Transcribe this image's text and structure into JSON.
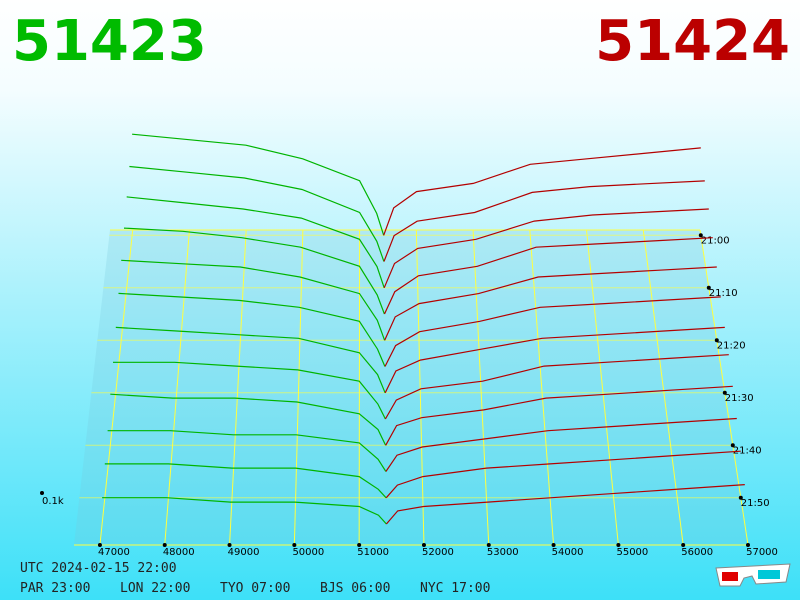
{
  "chart_data": {
    "type": "depth3d",
    "bid_price": 51423,
    "ask_price": 51424,
    "bid_color": "#00b400",
    "ask_color": "#b40000",
    "grid_color": "#ffff40",
    "xlim": [
      46600,
      57000
    ],
    "xticks": [
      47000,
      48000,
      49000,
      50000,
      51000,
      52000,
      53000,
      54000,
      55000,
      56000,
      57000
    ],
    "tlim": [
      -1,
      59
    ],
    "tticks": [
      {
        "value": 0,
        "label": "21:00"
      },
      {
        "value": 10,
        "label": "21:10"
      },
      {
        "value": 20,
        "label": "21:20"
      },
      {
        "value": 30,
        "label": "21:30"
      },
      {
        "value": 40,
        "label": "21:40"
      },
      {
        "value": 50,
        "label": "21:50"
      }
    ],
    "zticks": [
      {
        "value": 0.1,
        "label": "0.1k"
      }
    ],
    "bid_prices": [
      47000,
      48000,
      49000,
      50000,
      51000,
      51300,
      51423
    ],
    "ask_prices": [
      51424,
      51600,
      52000,
      53000,
      54000,
      55000,
      56000,
      57000
    ],
    "snapshots": [
      {
        "t": 0,
        "bids": [
          0.37,
          0.35,
          0.33,
          0.28,
          0.2,
          0.08,
          0
        ],
        "asks": [
          0,
          0.1,
          0.16,
          0.19,
          0.26,
          0.28,
          0.3,
          0.32
        ]
      },
      {
        "t": 5,
        "bids": [
          0.33,
          0.31,
          0.29,
          0.25,
          0.17,
          0.07,
          0
        ],
        "asks": [
          0,
          0.09,
          0.14,
          0.17,
          0.24,
          0.26,
          0.27,
          0.28
        ]
      },
      {
        "t": 10,
        "bids": [
          0.3,
          0.28,
          0.26,
          0.23,
          0.16,
          0.07,
          0
        ],
        "asks": [
          0,
          0.08,
          0.13,
          0.16,
          0.22,
          0.24,
          0.25,
          0.26
        ]
      },
      {
        "t": 15,
        "bids": [
          0.27,
          0.26,
          0.24,
          0.21,
          0.15,
          0.06,
          0
        ],
        "asks": [
          0,
          0.07,
          0.12,
          0.15,
          0.21,
          0.22,
          0.23,
          0.24
        ]
      },
      {
        "t": 20,
        "bids": [
          0.24,
          0.23,
          0.22,
          0.19,
          0.14,
          0.06,
          0
        ],
        "asks": [
          0,
          0.07,
          0.11,
          0.14,
          0.19,
          0.2,
          0.21,
          0.22
        ]
      },
      {
        "t": 25,
        "bids": [
          0.21,
          0.2,
          0.19,
          0.17,
          0.13,
          0.05,
          0
        ],
        "asks": [
          0,
          0.06,
          0.1,
          0.13,
          0.17,
          0.18,
          0.19,
          0.2
        ]
      },
      {
        "t": 30,
        "bids": [
          0.18,
          0.17,
          0.16,
          0.15,
          0.11,
          0.05,
          0
        ],
        "asks": [
          0,
          0.06,
          0.09,
          0.12,
          0.15,
          0.16,
          0.17,
          0.18
        ]
      },
      {
        "t": 35,
        "bids": [
          0.15,
          0.15,
          0.14,
          0.13,
          0.1,
          0.04,
          0
        ],
        "asks": [
          0,
          0.05,
          0.08,
          0.1,
          0.14,
          0.15,
          0.16,
          0.17
        ]
      },
      {
        "t": 40,
        "bids": [
          0.13,
          0.12,
          0.12,
          0.11,
          0.08,
          0.04,
          0
        ],
        "asks": [
          0,
          0.05,
          0.07,
          0.09,
          0.12,
          0.13,
          0.14,
          0.15
        ]
      },
      {
        "t": 45,
        "bids": [
          0.1,
          0.1,
          0.09,
          0.09,
          0.07,
          0.03,
          0
        ],
        "asks": [
          0,
          0.04,
          0.06,
          0.08,
          0.1,
          0.11,
          0.12,
          0.13
        ]
      },
      {
        "t": 50,
        "bids": [
          0.08,
          0.08,
          0.07,
          0.07,
          0.05,
          0.02,
          0
        ],
        "asks": [
          0,
          0.03,
          0.05,
          0.07,
          0.08,
          0.09,
          0.1,
          0.11
        ]
      },
      {
        "t": 55,
        "bids": [
          0.06,
          0.06,
          0.05,
          0.05,
          0.04,
          0.02,
          0
        ],
        "asks": [
          0,
          0.03,
          0.04,
          0.05,
          0.06,
          0.07,
          0.08,
          0.09
        ]
      }
    ]
  },
  "footer": {
    "utc": "UTC 2024-02-15 22:00",
    "cities": [
      "PAR 23:00",
      "LON 22:00",
      "TYO 07:00",
      "BJS 06:00",
      "NYC 17:00"
    ]
  }
}
